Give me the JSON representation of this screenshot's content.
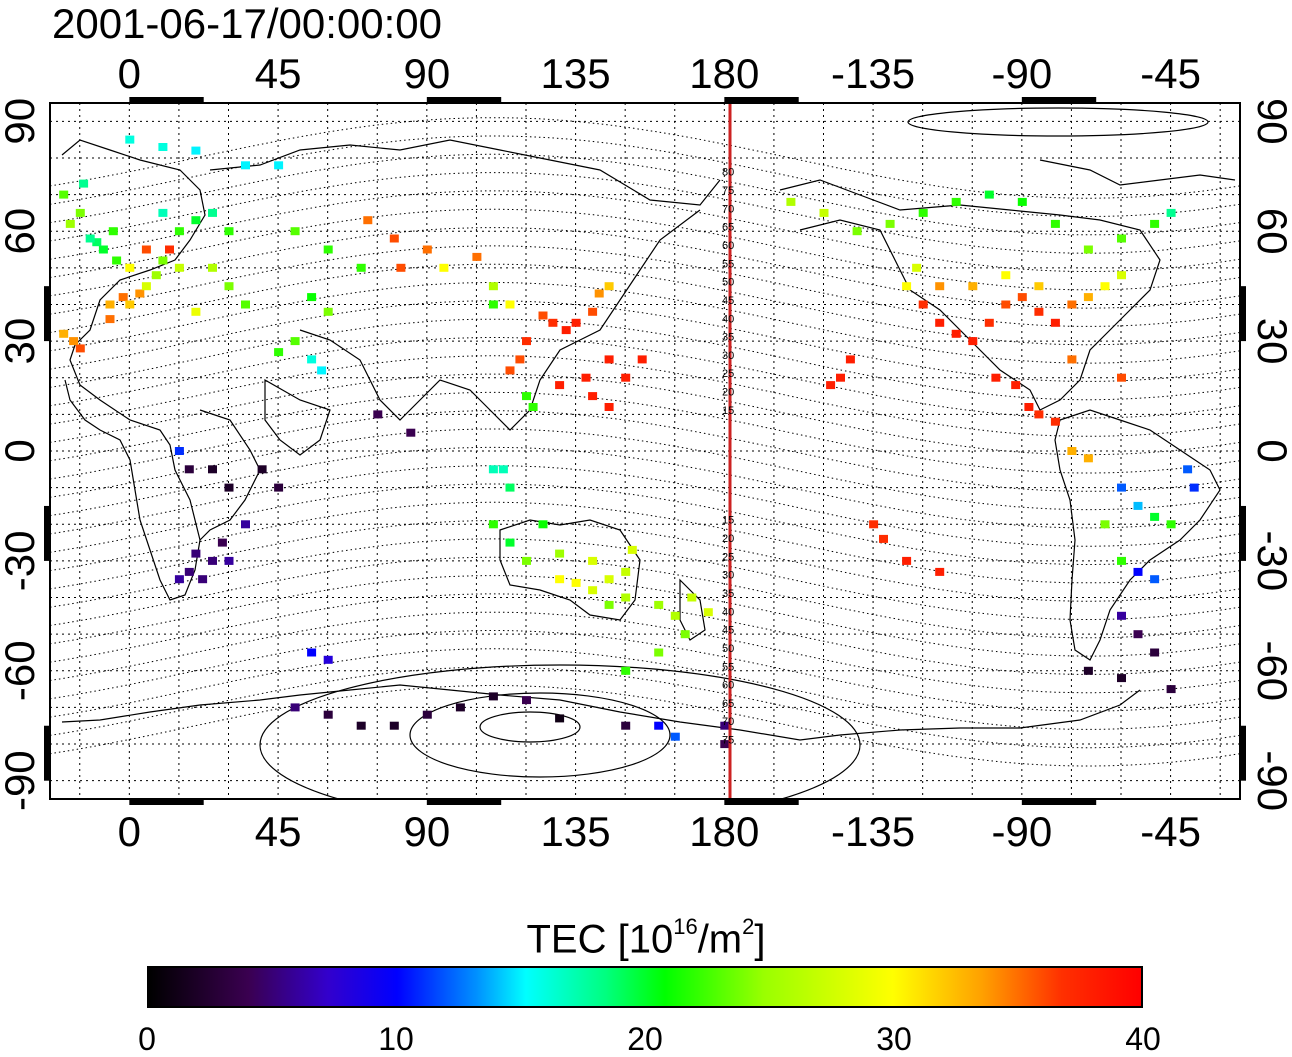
{
  "timestamp": "2001-06-17/00:00:00",
  "top_axis_ticks": [
    "0",
    "45",
    "90",
    "135",
    "180",
    "-135",
    "-90",
    "-45"
  ],
  "bottom_axis_ticks": [
    "0",
    "45",
    "90",
    "135",
    "180",
    "-135",
    "-90",
    "-45"
  ],
  "left_axis_ticks": [
    "90",
    "60",
    "30",
    "0",
    "-30",
    "-60",
    "-90"
  ],
  "right_axis_ticks": [
    "90",
    "60",
    "30",
    "0",
    "-30",
    "-60",
    "-90"
  ],
  "magnetic_lat_labels": [
    "80",
    "75",
    "70",
    "65",
    "60",
    "55",
    "50",
    "45",
    "40",
    "35",
    "30",
    "25",
    "20",
    "15",
    "15",
    "20",
    "25",
    "30",
    "35",
    "40",
    "45",
    "50",
    "55",
    "60",
    "65",
    "70",
    "75"
  ],
  "colorbar": {
    "title_prefix": "TEC  [10",
    "title_exp": "16",
    "title_mid": "/m",
    "title_exp2": "2",
    "title_suffix": "]",
    "ticks": [
      "0",
      "10",
      "20",
      "30",
      "40"
    ]
  },
  "colors": {
    "meridian_line": "#cc2222",
    "background": "#ffffff"
  },
  "chart_data": {
    "type": "scatter",
    "title": "2001-06-17/00:00:00",
    "xlabel": "",
    "ylabel": "",
    "xlim": [
      -24,
      336
    ],
    "ylim": [
      -95,
      95
    ],
    "grid": true,
    "colorbar_range": [
      0,
      40
    ],
    "colorbar_label": "TEC [10^16/m^2]",
    "points": [
      [
        -2,
        42,
        35
      ],
      [
        3,
        43,
        34
      ],
      [
        -6,
        40,
        33
      ],
      [
        0,
        40,
        32
      ],
      [
        5,
        45,
        28
      ],
      [
        8,
        48,
        25
      ],
      [
        10,
        52,
        24
      ],
      [
        -4,
        52,
        22
      ],
      [
        -8,
        55,
        20
      ],
      [
        -10,
        57,
        19
      ],
      [
        0,
        50,
        30
      ],
      [
        -12,
        58,
        18
      ],
      [
        -5,
        60,
        22
      ],
      [
        15,
        60,
        22
      ],
      [
        20,
        63,
        20
      ],
      [
        25,
        65,
        18
      ],
      [
        10,
        65,
        17
      ],
      [
        30,
        60,
        22
      ],
      [
        12,
        55,
        37
      ],
      [
        5,
        55,
        36
      ],
      [
        15,
        50,
        27
      ],
      [
        25,
        50,
        26
      ],
      [
        30,
        45,
        24
      ],
      [
        35,
        40,
        23
      ],
      [
        20,
        38,
        29
      ],
      [
        -6,
        36,
        35
      ],
      [
        -15,
        28,
        36
      ],
      [
        -17,
        30,
        34
      ],
      [
        -20,
        32,
        33
      ],
      [
        -14,
        73,
        18
      ],
      [
        0,
        85,
        16
      ],
      [
        10,
        83,
        16
      ],
      [
        20,
        82,
        15
      ],
      [
        35,
        78,
        15
      ],
      [
        45,
        78,
        15
      ],
      [
        50,
        60,
        23
      ],
      [
        60,
        55,
        22
      ],
      [
        70,
        50,
        22
      ],
      [
        55,
        42,
        21
      ],
      [
        60,
        38,
        24
      ],
      [
        50,
        30,
        23
      ],
      [
        55,
        25,
        16
      ],
      [
        58,
        22,
        15
      ],
      [
        45,
        27,
        22
      ],
      [
        72,
        63,
        35
      ],
      [
        80,
        58,
        36
      ],
      [
        82,
        50,
        36
      ],
      [
        90,
        55,
        35
      ],
      [
        105,
        53,
        35
      ],
      [
        110,
        45,
        26
      ],
      [
        115,
        40,
        30
      ],
      [
        95,
        50,
        30
      ],
      [
        125,
        37,
        36
      ],
      [
        128,
        35,
        37
      ],
      [
        132,
        33,
        38
      ],
      [
        135,
        35,
        38
      ],
      [
        140,
        38,
        36
      ],
      [
        142,
        43,
        34
      ],
      [
        145,
        45,
        32
      ],
      [
        120,
        30,
        37
      ],
      [
        118,
        25,
        36
      ],
      [
        115,
        22,
        36
      ],
      [
        120,
        15,
        22
      ],
      [
        122,
        12,
        22
      ],
      [
        110,
        40,
        22
      ],
      [
        145,
        25,
        38
      ],
      [
        150,
        20,
        38
      ],
      [
        155,
        25,
        38
      ],
      [
        140,
        15,
        38
      ],
      [
        145,
        12,
        38
      ],
      [
        130,
        18,
        38
      ],
      [
        138,
        20,
        38
      ],
      [
        113,
        -5,
        17
      ],
      [
        115,
        -10,
        19
      ],
      [
        110,
        -20,
        22
      ],
      [
        115,
        -25,
        20
      ],
      [
        120,
        -30,
        24
      ],
      [
        130,
        -28,
        25
      ],
      [
        140,
        -30,
        28
      ],
      [
        145,
        -35,
        28
      ],
      [
        150,
        -33,
        27
      ],
      [
        152,
        -27,
        28
      ],
      [
        130,
        -35,
        30
      ],
      [
        135,
        -36,
        30
      ],
      [
        140,
        -38,
        28
      ],
      [
        150,
        -40,
        26
      ],
      [
        145,
        -42,
        24
      ],
      [
        160,
        -42,
        25
      ],
      [
        165,
        -45,
        26
      ],
      [
        170,
        -40,
        27
      ],
      [
        175,
        -44,
        28
      ],
      [
        168,
        -50,
        24
      ],
      [
        160,
        -55,
        24
      ],
      [
        150,
        -60,
        22
      ],
      [
        110,
        -5,
        17
      ],
      [
        125,
        -20,
        21
      ],
      [
        15,
        0,
        11
      ],
      [
        18,
        -5,
        3
      ],
      [
        25,
        -5,
        2
      ],
      [
        30,
        -10,
        2
      ],
      [
        40,
        -5,
        2
      ],
      [
        45,
        -10,
        3
      ],
      [
        85,
        5,
        4
      ],
      [
        75,
        10,
        4
      ],
      [
        20,
        -28,
        5
      ],
      [
        25,
        -30,
        5
      ],
      [
        28,
        -25,
        4
      ],
      [
        30,
        -30,
        6
      ],
      [
        22,
        -35,
        5
      ],
      [
        18,
        -33,
        5
      ],
      [
        15,
        -35,
        6
      ],
      [
        35,
        -20,
        6
      ],
      [
        55,
        -55,
        10
      ],
      [
        60,
        -57,
        8
      ],
      [
        50,
        -70,
        5
      ],
      [
        60,
        -72,
        3
      ],
      [
        70,
        -75,
        2
      ],
      [
        80,
        -75,
        2
      ],
      [
        90,
        -72,
        3
      ],
      [
        100,
        -70,
        2
      ],
      [
        110,
        -67,
        2
      ],
      [
        120,
        -68,
        4
      ],
      [
        130,
        -73,
        1
      ],
      [
        150,
        -75,
        3
      ],
      [
        160,
        -75,
        10
      ],
      [
        165,
        -78,
        12
      ],
      [
        180,
        -75,
        5
      ],
      [
        180,
        -80,
        4
      ],
      [
        -15,
        65,
        24
      ],
      [
        -20,
        70,
        23
      ],
      [
        -18,
        62,
        25
      ],
      [
        200,
        68,
        26
      ],
      [
        210,
        65,
        27
      ],
      [
        220,
        60,
        24
      ],
      [
        230,
        62,
        24
      ],
      [
        240,
        65,
        22
      ],
      [
        250,
        68,
        22
      ],
      [
        260,
        70,
        20
      ],
      [
        270,
        68,
        21
      ],
      [
        280,
        62,
        22
      ],
      [
        290,
        55,
        24
      ],
      [
        300,
        58,
        23
      ],
      [
        310,
        62,
        22
      ],
      [
        315,
        65,
        18
      ],
      [
        240,
        40,
        37
      ],
      [
        245,
        35,
        38
      ],
      [
        250,
        32,
        38
      ],
      [
        255,
        30,
        38
      ],
      [
        260,
        35,
        37
      ],
      [
        265,
        40,
        36
      ],
      [
        270,
        42,
        36
      ],
      [
        275,
        38,
        37
      ],
      [
        280,
        35,
        38
      ],
      [
        285,
        40,
        35
      ],
      [
        290,
        42,
        33
      ],
      [
        295,
        45,
        30
      ],
      [
        300,
        48,
        28
      ],
      [
        235,
        45,
        30
      ],
      [
        238,
        50,
        28
      ],
      [
        245,
        45,
        34
      ],
      [
        255,
        45,
        33
      ],
      [
        265,
        48,
        30
      ],
      [
        275,
        45,
        32
      ],
      [
        262,
        20,
        38
      ],
      [
        268,
        18,
        38
      ],
      [
        272,
        12,
        38
      ],
      [
        275,
        10,
        37
      ],
      [
        280,
        8,
        37
      ],
      [
        285,
        0,
        33
      ],
      [
        290,
        -2,
        33
      ],
      [
        300,
        -10,
        12
      ],
      [
        305,
        -15,
        14
      ],
      [
        310,
        -18,
        20
      ],
      [
        315,
        -20,
        22
      ],
      [
        320,
        -5,
        12
      ],
      [
        322,
        -10,
        11
      ],
      [
        295,
        -20,
        24
      ],
      [
        300,
        -30,
        22
      ],
      [
        305,
        -33,
        10
      ],
      [
        310,
        -35,
        12
      ],
      [
        300,
        -45,
        6
      ],
      [
        305,
        -50,
        4
      ],
      [
        310,
        -55,
        3
      ],
      [
        290,
        -60,
        2
      ],
      [
        300,
        -62,
        2
      ],
      [
        315,
        -65,
        3
      ],
      [
        215,
        20,
        38
      ],
      [
        218,
        25,
        38
      ],
      [
        212,
        18,
        38
      ],
      [
        225,
        -20,
        37
      ],
      [
        228,
        -24,
        37
      ],
      [
        235,
        -30,
        38
      ],
      [
        245,
        -33,
        38
      ],
      [
        300,
        20,
        36
      ],
      [
        285,
        25,
        35
      ]
    ]
  }
}
